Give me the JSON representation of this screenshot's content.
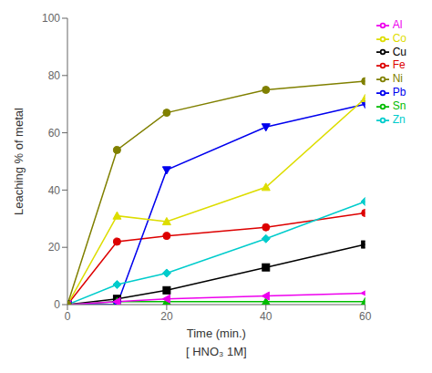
{
  "chart_data": {
    "type": "line",
    "x": [
      0,
      10,
      20,
      40,
      60
    ],
    "series": [
      {
        "name": "Cu",
        "color": "#000000",
        "marker": "square",
        "line_style": "solid",
        "values": [
          0,
          2,
          5,
          13,
          21
        ]
      },
      {
        "name": "Fe",
        "color": "#dd0000",
        "marker": "circle",
        "line_style": "solid",
        "values": [
          0,
          22,
          24,
          27,
          32
        ]
      },
      {
        "name": "Sn",
        "color": "#00bb00",
        "marker": "triangle_up",
        "line_style": "solid",
        "values": [
          0,
          1,
          1,
          1,
          1
        ]
      },
      {
        "name": "Pb",
        "color": "#0000ee",
        "marker": "triangle_down",
        "line_style": "solid",
        "values": [
          0,
          0,
          47,
          62,
          70
        ]
      },
      {
        "name": "Zn",
        "color": "#00cccc",
        "marker": "diamond",
        "line_style": "solid",
        "values": [
          0,
          7,
          11,
          23,
          36
        ]
      },
      {
        "name": "Al",
        "color": "#ee00ee",
        "marker": "triangle_left",
        "line_style": "solid",
        "values": [
          0,
          1,
          2,
          3,
          4
        ]
      },
      {
        "name": "Co",
        "color": "#dddd00",
        "marker": "triangle_up",
        "line_style": "solid",
        "values": [
          0,
          31,
          29,
          41,
          72
        ]
      },
      {
        "name": "Ni",
        "color": "#808000",
        "marker": "circle",
        "line_style": "solid",
        "values": [
          0,
          54,
          67,
          75,
          78
        ]
      }
    ],
    "xlabel": "Time (min.)",
    "ylabel": "Leaching % of metal",
    "annotations": [
      "[ HNO₃   1M]"
    ],
    "xlim": [
      0,
      60
    ],
    "xticks": [
      0,
      20,
      40,
      60
    ],
    "ylim": [
      0,
      100
    ],
    "yticks": [
      0,
      20,
      40,
      60,
      80,
      100
    ],
    "grid": false,
    "legend": "upper right"
  }
}
